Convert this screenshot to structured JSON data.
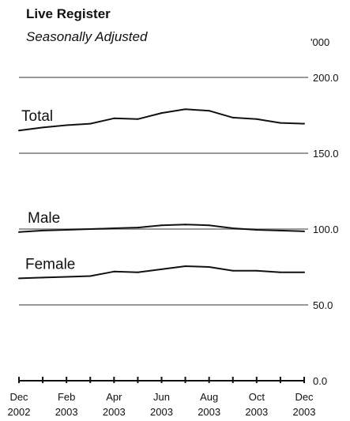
{
  "chart_data": {
    "type": "line",
    "title": "Live Register",
    "subtitle": "Seasonally Adjusted",
    "unit": "'000",
    "x": [
      "Dec 2002",
      "Jan 2003",
      "Feb 2003",
      "Mar 2003",
      "Apr 2003",
      "May 2003",
      "Jun 2003",
      "Jul 2003",
      "Aug 2003",
      "Sep 2003",
      "Oct 2003",
      "Nov 2003",
      "Dec 2003"
    ],
    "xtick_labels": [
      {
        "index": 0,
        "month": "Dec",
        "year": "2002"
      },
      {
        "index": 2,
        "month": "Feb",
        "year": "2003"
      },
      {
        "index": 4,
        "month": "Apr",
        "year": "2003"
      },
      {
        "index": 6,
        "month": "Jun",
        "year": "2003"
      },
      {
        "index": 8,
        "month": "Aug",
        "year": "2003"
      },
      {
        "index": 10,
        "month": "Oct",
        "year": "2003"
      },
      {
        "index": 12,
        "month": "Dec",
        "year": "2003"
      }
    ],
    "yticks": [
      {
        "value": 200,
        "label": "200.0"
      },
      {
        "value": 150,
        "label": "150.0"
      },
      {
        "value": 100,
        "label": "100.0"
      },
      {
        "value": 50,
        "label": "50.0"
      },
      {
        "value": 0,
        "label": "0.0"
      }
    ],
    "ylim": [
      0,
      200
    ],
    "grid": true,
    "series": [
      {
        "name": "Total",
        "values": [
          165.0,
          167.0,
          168.5,
          169.5,
          173.0,
          172.5,
          176.5,
          179.0,
          178.0,
          173.5,
          172.5,
          170.0,
          169.5
        ]
      },
      {
        "name": "Male",
        "values": [
          98.0,
          99.0,
          99.5,
          100.0,
          100.5,
          101.0,
          102.5,
          103.0,
          102.5,
          100.5,
          99.5,
          99.0,
          98.5
        ]
      },
      {
        "name": "Female",
        "values": [
          67.5,
          68.0,
          68.5,
          69.0,
          72.0,
          71.5,
          73.5,
          75.5,
          75.0,
          72.5,
          72.5,
          71.5,
          71.5
        ]
      }
    ]
  }
}
